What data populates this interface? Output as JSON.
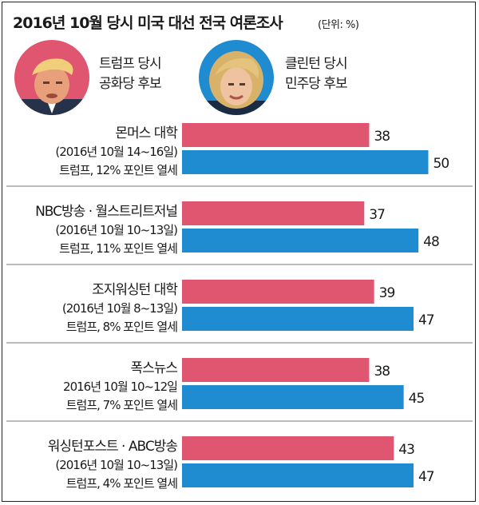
{
  "header": {
    "title": "2016년 10월 당시 미국 대선 전국 여론조사",
    "unit": "(단위: %)"
  },
  "legend": {
    "trump": {
      "line1": "트럼프 당시",
      "line2": "공화당 후보",
      "color": "#e0556f"
    },
    "clinton": {
      "line1": "클린턴 당시",
      "line2": "민주당 후보",
      "color": "#1f8bd1"
    }
  },
  "chart_data": {
    "type": "bar",
    "orientation": "horizontal",
    "series": [
      {
        "name": "트럼프",
        "color": "#e0556f",
        "values": [
          38,
          37,
          39,
          38,
          43
        ]
      },
      {
        "name": "클린턴",
        "color": "#1f8bd1",
        "values": [
          50,
          48,
          47,
          45,
          47
        ]
      }
    ],
    "groups": [
      {
        "poll": "몬머스 대학",
        "date": "(2016년 10월 14~16일)",
        "gap": "트럼프, 12% 포인트 열세"
      },
      {
        "poll": "NBC방송 · 월스트리트저널",
        "date": "(2016년 10월 10~13일)",
        "gap": "트럼프, 11% 포인트 열세"
      },
      {
        "poll": "조지워싱턴 대학",
        "date": "(2016년 10월 8~13일)",
        "gap": "트럼프, 8% 포인트 열세"
      },
      {
        "poll": "폭스뉴스",
        "date": "2016년 10월 10~12일",
        "gap": "트럼프, 7% 포인트 열세"
      },
      {
        "poll": "워싱턴포스트 · ABC방송",
        "date": "(2016년 10월 10~13일)",
        "gap": "트럼프, 4% 포인트 열세"
      }
    ]
  }
}
